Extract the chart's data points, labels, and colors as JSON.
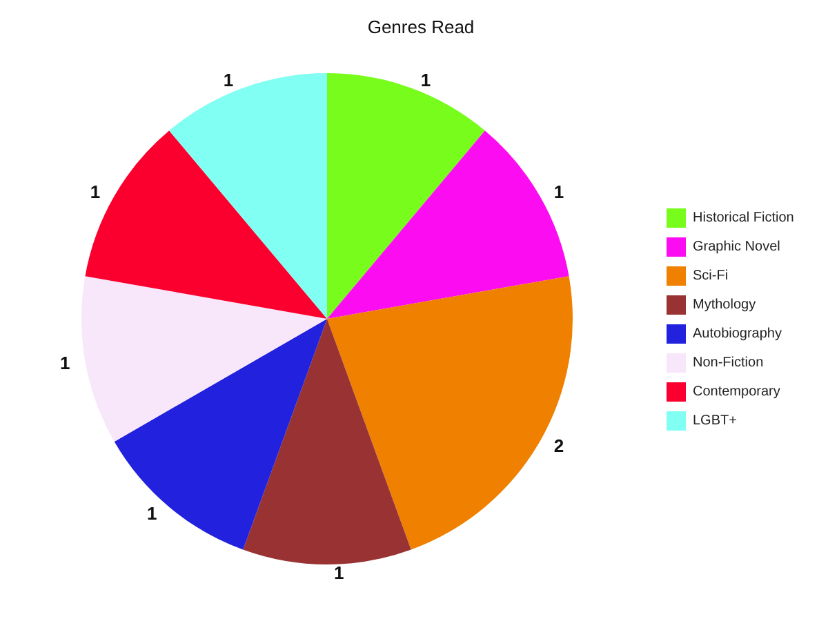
{
  "chart_data": {
    "type": "pie",
    "title": "Genres Read",
    "categories": [
      "Historical Fiction",
      "Graphic Novel",
      "Sci-Fi",
      "Mythology",
      "Autobiography",
      "Non-Fiction",
      "Contemporary",
      "LGBT+"
    ],
    "values": [
      1,
      1,
      2,
      1,
      1,
      1,
      1,
      1
    ],
    "colors": [
      "#78fc1c",
      "#fc0cf0",
      "#ef8000",
      "#993333",
      "#2121de",
      "#f8e6fa",
      "#fb002e",
      "#80fff2"
    ],
    "data_labels": true,
    "legend": "right"
  }
}
